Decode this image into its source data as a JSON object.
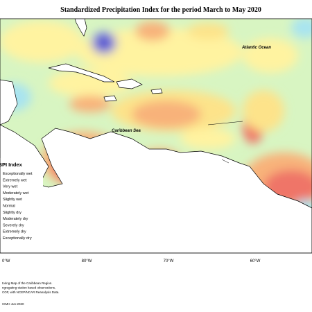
{
  "title": "Standardized Precipitation Index for the period March to May 2020",
  "map_labels": {
    "atlantic": "Atlantic Ocean",
    "caribbean": "Caribbean Sea"
  },
  "legend": {
    "title": "SPI Index",
    "entries": [
      "Exceptionally wet",
      "Extremely wet",
      "Very wet",
      "Moderately wet",
      "Slightly wet",
      "Normal",
      "Slightly dry",
      "Moderately dry",
      "Severely dry",
      "Extremely dry",
      "Exceptionally dry"
    ]
  },
  "longitude_labels": [
    "0°W",
    "80°W",
    "70°W",
    "60°W"
  ],
  "footer": {
    "lines": [
      "toring Map of the Caribbean Region.",
      "ngregating station based observations,",
      "COF, with NCEP/NCAR Reanalysis Data."
    ],
    "credit": "CIMH Jun-2020"
  }
}
